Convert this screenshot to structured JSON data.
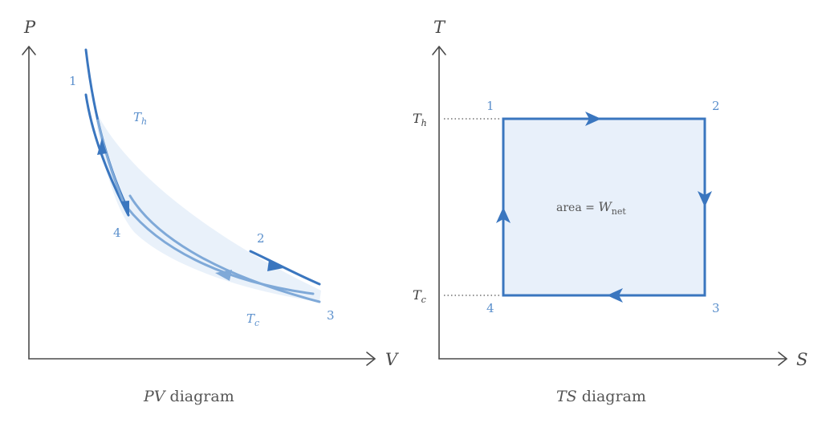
{
  "pv_diagram": {
    "axis_y": "P",
    "axis_x": "V",
    "caption_italic": "PV",
    "caption_rest": " diagram",
    "points": {
      "p1": "1",
      "p2": "2",
      "p3": "3",
      "p4": "4"
    },
    "th_base": "T",
    "th_sub": "h",
    "tc_base": "T",
    "tc_sub": "c"
  },
  "ts_diagram": {
    "axis_y": "T",
    "axis_x": "S",
    "caption_italic": "TS",
    "caption_rest": " diagram",
    "points": {
      "p1": "1",
      "p2": "2",
      "p3": "3",
      "p4": "4"
    },
    "th_base": "T",
    "th_sub": "h",
    "tc_base": "T",
    "tc_sub": "c",
    "area_prefix": "area = ",
    "area_w": "W",
    "area_sub": "net"
  },
  "colors": {
    "dark_curve": "#3a76bf",
    "light_curve": "#7fa9d8",
    "fill": "#e8f0fa",
    "axis": "#4a4a4a"
  }
}
